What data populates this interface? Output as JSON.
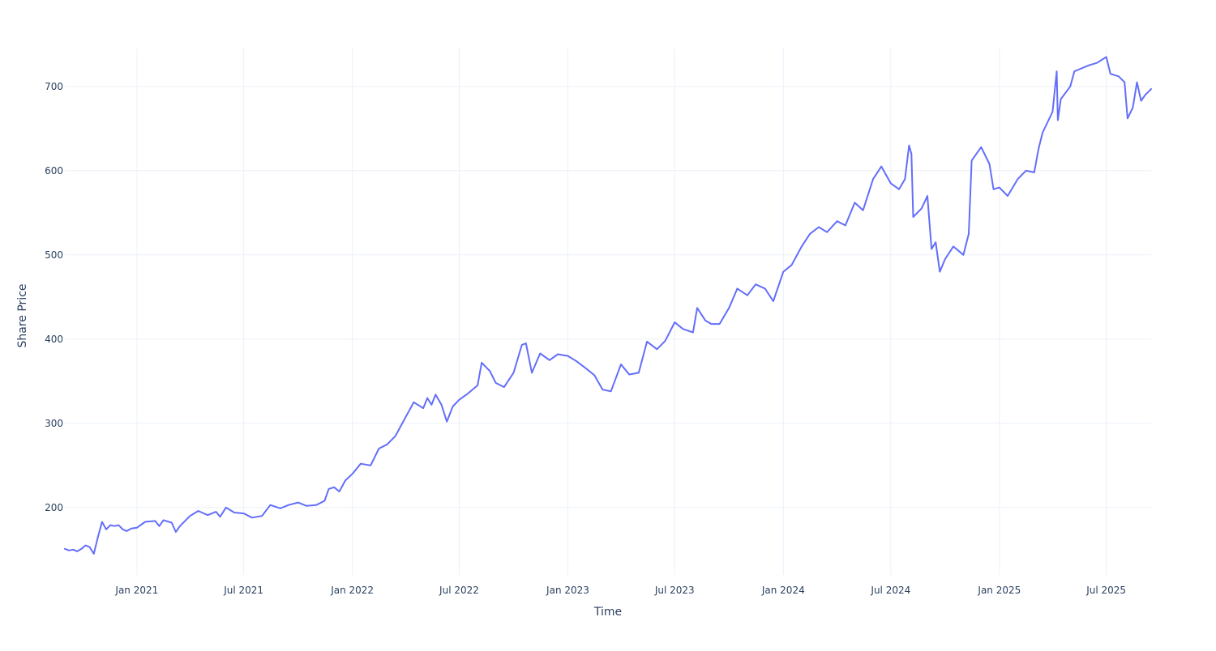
{
  "chart_data": {
    "type": "line",
    "title": "",
    "xlabel": "Time",
    "ylabel": "Share Price",
    "grid": true,
    "legend": "none",
    "xlim": [
      "2020-09-01",
      "2025-09-15"
    ],
    "ylim": [
      120,
      745
    ],
    "x_ticks": [
      {
        "date": "2021-01-01",
        "label": "Jan 2021"
      },
      {
        "date": "2021-07-01",
        "label": "Jul 2021"
      },
      {
        "date": "2022-01-01",
        "label": "Jan 2022"
      },
      {
        "date": "2022-07-01",
        "label": "Jul 2022"
      },
      {
        "date": "2023-01-01",
        "label": "Jan 2023"
      },
      {
        "date": "2023-07-01",
        "label": "Jul 2023"
      },
      {
        "date": "2024-01-01",
        "label": "Jan 2024"
      },
      {
        "date": "2024-07-01",
        "label": "Jul 2024"
      },
      {
        "date": "2025-01-01",
        "label": "Jan 2025"
      },
      {
        "date": "2025-07-01",
        "label": "Jul 2025"
      }
    ],
    "y_ticks": [
      {
        "value": 200,
        "label": "200"
      },
      {
        "value": 300,
        "label": "300"
      },
      {
        "value": 400,
        "label": "400"
      },
      {
        "value": 500,
        "label": "500"
      },
      {
        "value": 600,
        "label": "600"
      },
      {
        "value": 700,
        "label": "700"
      }
    ],
    "series": [
      {
        "color": "#636efa",
        "points": [
          [
            "2020-09-01",
            151
          ],
          [
            "2020-09-08",
            149
          ],
          [
            "2020-09-15",
            150
          ],
          [
            "2020-09-22",
            148
          ],
          [
            "2020-09-29",
            151
          ],
          [
            "2020-10-06",
            155
          ],
          [
            "2020-10-13",
            153
          ],
          [
            "2020-10-20",
            145
          ],
          [
            "2020-10-27",
            165
          ],
          [
            "2020-11-03",
            183
          ],
          [
            "2020-11-10",
            174
          ],
          [
            "2020-11-17",
            179
          ],
          [
            "2020-11-24",
            178
          ],
          [
            "2020-12-01",
            179
          ],
          [
            "2020-12-08",
            174
          ],
          [
            "2020-12-15",
            172
          ],
          [
            "2020-12-22",
            175
          ],
          [
            "2021-01-01",
            176
          ],
          [
            "2021-01-15",
            183
          ],
          [
            "2021-02-01",
            184
          ],
          [
            "2021-02-08",
            178
          ],
          [
            "2021-02-15",
            185
          ],
          [
            "2021-03-01",
            182
          ],
          [
            "2021-03-08",
            171
          ],
          [
            "2021-03-15",
            178
          ],
          [
            "2021-04-01",
            190
          ],
          [
            "2021-04-15",
            196
          ],
          [
            "2021-05-01",
            191
          ],
          [
            "2021-05-15",
            195
          ],
          [
            "2021-05-22",
            189
          ],
          [
            "2021-06-01",
            200
          ],
          [
            "2021-06-15",
            194
          ],
          [
            "2021-07-01",
            193
          ],
          [
            "2021-07-15",
            188
          ],
          [
            "2021-08-01",
            190
          ],
          [
            "2021-08-15",
            203
          ],
          [
            "2021-09-01",
            199
          ],
          [
            "2021-09-15",
            203
          ],
          [
            "2021-10-01",
            206
          ],
          [
            "2021-10-15",
            202
          ],
          [
            "2021-11-01",
            203
          ],
          [
            "2021-11-15",
            208
          ],
          [
            "2021-11-22",
            222
          ],
          [
            "2021-12-01",
            224
          ],
          [
            "2021-12-10",
            219
          ],
          [
            "2021-12-20",
            232
          ],
          [
            "2022-01-01",
            240
          ],
          [
            "2022-01-15",
            252
          ],
          [
            "2022-02-01",
            250
          ],
          [
            "2022-02-15",
            270
          ],
          [
            "2022-03-01",
            275
          ],
          [
            "2022-03-15",
            285
          ],
          [
            "2022-04-01",
            307
          ],
          [
            "2022-04-15",
            325
          ],
          [
            "2022-05-01",
            318
          ],
          [
            "2022-05-08",
            330
          ],
          [
            "2022-05-15",
            322
          ],
          [
            "2022-05-22",
            334
          ],
          [
            "2022-06-01",
            322
          ],
          [
            "2022-06-10",
            302
          ],
          [
            "2022-06-20",
            320
          ],
          [
            "2022-07-01",
            328
          ],
          [
            "2022-07-15",
            335
          ],
          [
            "2022-08-01",
            345
          ],
          [
            "2022-08-08",
            372
          ],
          [
            "2022-08-22",
            362
          ],
          [
            "2022-09-01",
            348
          ],
          [
            "2022-09-15",
            343
          ],
          [
            "2022-10-01",
            360
          ],
          [
            "2022-10-15",
            393
          ],
          [
            "2022-10-22",
            395
          ],
          [
            "2022-11-01",
            360
          ],
          [
            "2022-11-15",
            383
          ],
          [
            "2022-12-01",
            375
          ],
          [
            "2022-12-15",
            382
          ],
          [
            "2023-01-01",
            380
          ],
          [
            "2023-01-15",
            374
          ],
          [
            "2023-02-01",
            365
          ],
          [
            "2023-02-15",
            357
          ],
          [
            "2023-03-01",
            340
          ],
          [
            "2023-03-15",
            338
          ],
          [
            "2023-04-01",
            370
          ],
          [
            "2023-04-15",
            358
          ],
          [
            "2023-05-01",
            360
          ],
          [
            "2023-05-15",
            397
          ],
          [
            "2023-06-01",
            388
          ],
          [
            "2023-06-15",
            398
          ],
          [
            "2023-07-01",
            420
          ],
          [
            "2023-07-15",
            412
          ],
          [
            "2023-08-01",
            408
          ],
          [
            "2023-08-08",
            437
          ],
          [
            "2023-08-22",
            422
          ],
          [
            "2023-09-01",
            418
          ],
          [
            "2023-09-15",
            418
          ],
          [
            "2023-10-01",
            437
          ],
          [
            "2023-10-15",
            460
          ],
          [
            "2023-11-01",
            452
          ],
          [
            "2023-11-15",
            465
          ],
          [
            "2023-12-01",
            460
          ],
          [
            "2023-12-15",
            445
          ],
          [
            "2024-01-01",
            480
          ],
          [
            "2024-01-15",
            488
          ],
          [
            "2024-02-01",
            510
          ],
          [
            "2024-02-15",
            525
          ],
          [
            "2024-03-01",
            533
          ],
          [
            "2024-03-15",
            527
          ],
          [
            "2024-04-01",
            540
          ],
          [
            "2024-04-15",
            535
          ],
          [
            "2024-05-01",
            562
          ],
          [
            "2024-05-15",
            553
          ],
          [
            "2024-06-01",
            590
          ],
          [
            "2024-06-15",
            605
          ],
          [
            "2024-07-01",
            585
          ],
          [
            "2024-07-15",
            578
          ],
          [
            "2024-07-25",
            590
          ],
          [
            "2024-08-01",
            630
          ],
          [
            "2024-08-05",
            620
          ],
          [
            "2024-08-08",
            545
          ],
          [
            "2024-08-22",
            555
          ],
          [
            "2024-09-01",
            570
          ],
          [
            "2024-09-08",
            507
          ],
          [
            "2024-09-15",
            515
          ],
          [
            "2024-09-22",
            480
          ],
          [
            "2024-10-01",
            495
          ],
          [
            "2024-10-15",
            510
          ],
          [
            "2024-11-01",
            500
          ],
          [
            "2024-11-10",
            525
          ],
          [
            "2024-11-15",
            612
          ],
          [
            "2024-12-01",
            628
          ],
          [
            "2024-12-15",
            608
          ],
          [
            "2024-12-22",
            578
          ],
          [
            "2025-01-01",
            580
          ],
          [
            "2025-01-15",
            570
          ],
          [
            "2025-02-01",
            590
          ],
          [
            "2025-02-15",
            600
          ],
          [
            "2025-03-01",
            598
          ],
          [
            "2025-03-08",
            625
          ],
          [
            "2025-03-15",
            645
          ],
          [
            "2025-04-01",
            670
          ],
          [
            "2025-04-08",
            718
          ],
          [
            "2025-04-10",
            660
          ],
          [
            "2025-04-15",
            685
          ],
          [
            "2025-05-01",
            700
          ],
          [
            "2025-05-08",
            718
          ],
          [
            "2025-05-15",
            720
          ],
          [
            "2025-06-01",
            725
          ],
          [
            "2025-06-15",
            728
          ],
          [
            "2025-07-01",
            735
          ],
          [
            "2025-07-08",
            715
          ],
          [
            "2025-07-22",
            712
          ],
          [
            "2025-08-01",
            705
          ],
          [
            "2025-08-06",
            662
          ],
          [
            "2025-08-15",
            675
          ],
          [
            "2025-08-22",
            705
          ],
          [
            "2025-08-29",
            683
          ],
          [
            "2025-09-05",
            690
          ],
          [
            "2025-09-15",
            697
          ]
        ]
      }
    ]
  }
}
